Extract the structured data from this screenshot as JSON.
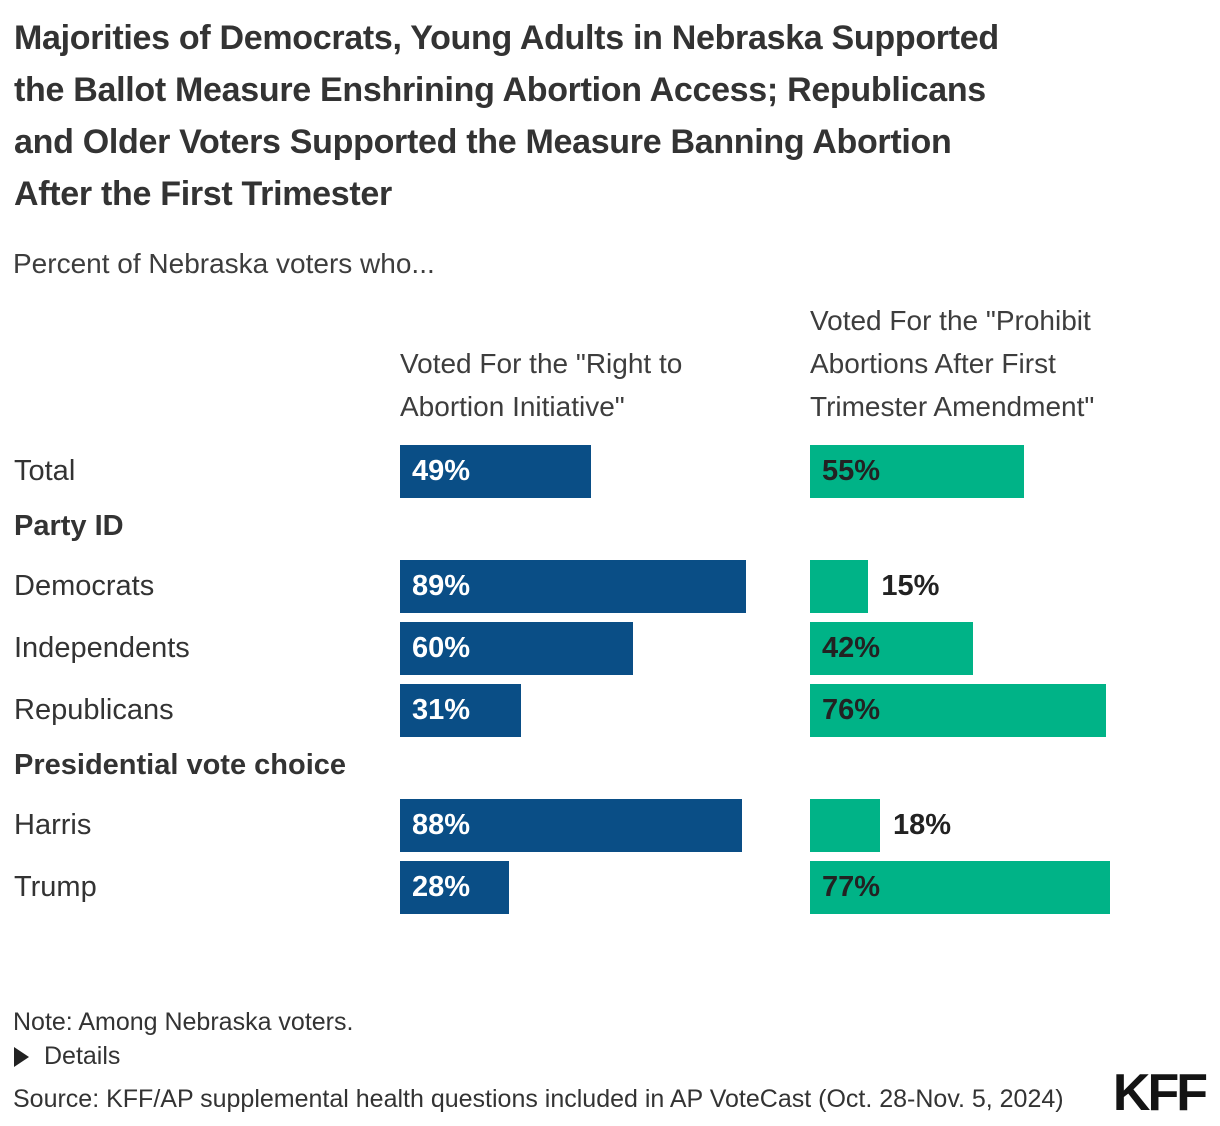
{
  "title": "Majorities of Democrats, Young Adults in Nebraska Supported the Ballot Measure Enshrining Abortion Access; Republicans and Older Voters Supported the Measure Banning Abortion After the First Trimester",
  "title_lines": [
    "Majorities of Democrats, Young Adults in Nebraska Supported",
    "the Ballot Measure Enshrining Abortion Access; Republicans",
    "and Older Voters Supported the Measure Banning Abortion",
    "After the First Trimester"
  ],
  "subtitle": "Percent of Nebraska voters who...",
  "sections": {
    "party": "Party ID",
    "presidential": "Presidential vote choice"
  },
  "chart_data": {
    "type": "bar",
    "orientation": "horizontal",
    "unit": "%",
    "xlim": [
      0,
      100
    ],
    "grid": false,
    "legend_position": "column-headers-top",
    "value_labels": "inside-start; outside-right for small bars",
    "categories": [
      "Total",
      "Democrats",
      "Independents",
      "Republicans",
      "Harris",
      "Trump"
    ],
    "row_groups": [
      {
        "label": "Party ID",
        "categories": [
          "Democrats",
          "Independents",
          "Republicans"
        ]
      },
      {
        "label": "Presidential vote choice",
        "categories": [
          "Harris",
          "Trump"
        ]
      }
    ],
    "series": [
      {
        "name": "Voted For the \"Right to Abortion Initiative\"",
        "color": "#0A4E86",
        "label_color": "#FFFFFF",
        "values": [
          49,
          89,
          60,
          31,
          88,
          28
        ]
      },
      {
        "name": "Voted For the \"Prohibit Abortions After First Trimester Amendment\"",
        "color": "#00B387",
        "label_color": "#222222",
        "values": [
          55,
          15,
          42,
          76,
          18,
          77
        ]
      }
    ]
  },
  "footer": {
    "note": "Note: Among Nebraska voters.",
    "details_label": "Details",
    "source": "Source: KFF/AP supplemental health questions included in AP VoteCast (Oct. 28-Nov. 5, 2024)",
    "logo": "KFF"
  }
}
